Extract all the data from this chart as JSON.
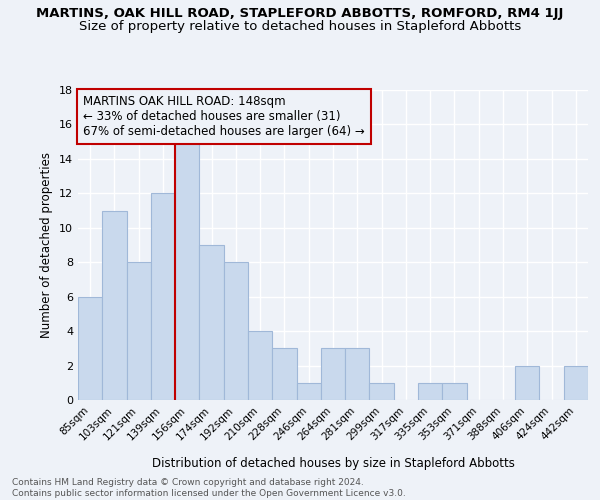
{
  "title": "MARTINS, OAK HILL ROAD, STAPLEFORD ABBOTTS, ROMFORD, RM4 1JJ",
  "subtitle": "Size of property relative to detached houses in Stapleford Abbotts",
  "xlabel": "Distribution of detached houses by size in Stapleford Abbotts",
  "ylabel": "Number of detached properties",
  "categories": [
    "85sqm",
    "103sqm",
    "121sqm",
    "139sqm",
    "156sqm",
    "174sqm",
    "192sqm",
    "210sqm",
    "228sqm",
    "246sqm",
    "264sqm",
    "281sqm",
    "299sqm",
    "317sqm",
    "335sqm",
    "353sqm",
    "371sqm",
    "388sqm",
    "406sqm",
    "424sqm",
    "442sqm"
  ],
  "values": [
    6,
    11,
    8,
    12,
    15,
    9,
    8,
    4,
    3,
    1,
    3,
    3,
    1,
    0,
    1,
    1,
    0,
    0,
    2,
    0,
    2
  ],
  "bar_color": "#c9d9ed",
  "bar_edge_color": "#a0b8d8",
  "vline_x_idx": 3,
  "vline_color": "#c00000",
  "annotation_text": "MARTINS OAK HILL ROAD: 148sqm\n← 33% of detached houses are smaller (31)\n67% of semi-detached houses are larger (64) →",
  "annotation_box_color": "#c00000",
  "ylim": [
    0,
    18
  ],
  "yticks": [
    0,
    2,
    4,
    6,
    8,
    10,
    12,
    14,
    16,
    18
  ],
  "footer": "Contains HM Land Registry data © Crown copyright and database right 2024.\nContains public sector information licensed under the Open Government Licence v3.0.",
  "bg_color": "#eef2f8",
  "grid_color": "#ffffff",
  "title_fontsize": 9.5,
  "subtitle_fontsize": 9.5,
  "ann_fontsize": 8.5
}
